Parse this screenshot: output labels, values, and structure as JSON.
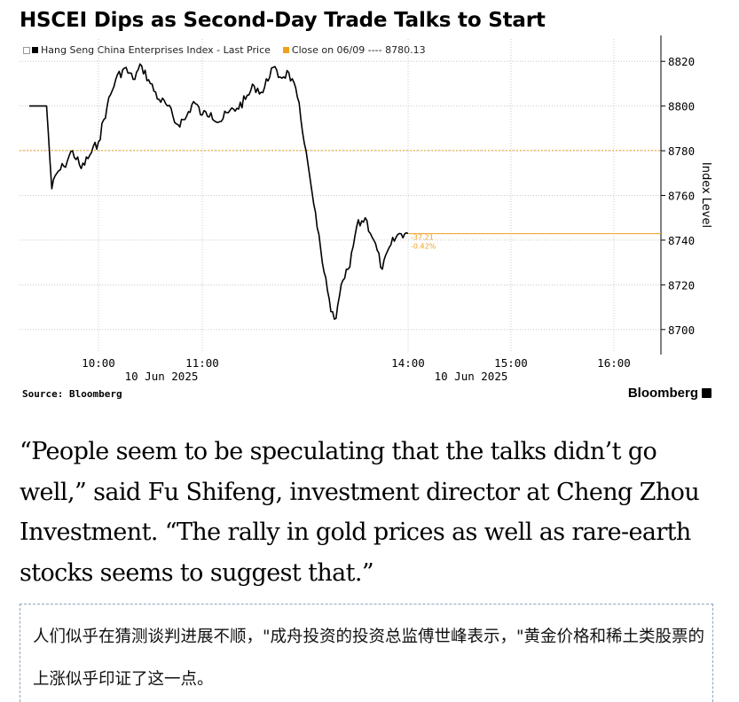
{
  "header": {
    "title": "HSCEI Dips as Second-Day Trade Talks to Start"
  },
  "legend": {
    "series_label": "Hang Seng China Enterprises Index - Last Price",
    "close_label": "Close on 06/09 ---- 8780.13",
    "series_color": "#000000",
    "close_color": "#f0a020"
  },
  "chart_data": {
    "type": "line",
    "title": "HSCEI Dips as Second-Day Trade Talks to Start",
    "xlabel": "",
    "ylabel": "Index Level",
    "ylim": [
      8690,
      8830
    ],
    "yticks": [
      8700,
      8720,
      8740,
      8760,
      8780,
      8800,
      8820
    ],
    "ytick_labels": [
      "8700",
      "8720",
      "8740",
      "8760",
      "8780",
      "8800",
      "8820"
    ],
    "xticks": [
      {
        "time": "10:00",
        "date": "10 Jun 2025",
        "hour": 10.0
      },
      {
        "time": "11:00",
        "date": "",
        "hour": 11.0
      },
      {
        "time": "14:00",
        "date": "10 Jun 2025",
        "hour": 14.0
      },
      {
        "time": "15:00",
        "date": "",
        "hour": 15.0
      },
      {
        "time": "16:00",
        "date": "",
        "hour": 16.0
      }
    ],
    "x_axis_note": "lunch break 12:00-13:00 compressed",
    "grid": true,
    "reference_line": {
      "label": "Close on 06/09",
      "value": 8780.13
    },
    "last_value": 8742.9,
    "change_labels": [
      "-37.21",
      "-0.42%"
    ],
    "series": [
      {
        "name": "Hang Seng China Enterprises Index - Last Price",
        "x": [
          "09:20",
          "09:30",
          "09:33",
          "09:36",
          "09:40",
          "09:45",
          "09:50",
          "09:55",
          "10:00",
          "10:05",
          "10:10",
          "10:15",
          "10:20",
          "10:25",
          "10:30",
          "10:35",
          "10:40",
          "10:45",
          "10:50",
          "10:55",
          "11:00",
          "11:05",
          "11:10",
          "11:15",
          "11:20",
          "11:25",
          "11:30",
          "11:35",
          "11:40",
          "11:45",
          "11:50",
          "11:55",
          "12:00",
          "13:05",
          "13:10",
          "13:15",
          "13:18",
          "13:22",
          "13:26",
          "13:30",
          "13:35",
          "13:40",
          "13:45",
          "13:50",
          "13:55",
          "14:00"
        ],
        "y": [
          8800,
          8800,
          8763,
          8770,
          8773,
          8780,
          8772,
          8778,
          8784,
          8800,
          8812,
          8817,
          8812,
          8818,
          8810,
          8803,
          8800,
          8792,
          8794,
          8802,
          8796,
          8797,
          8793,
          8797,
          8799,
          8803,
          8809,
          8806,
          8817,
          8813,
          8815,
          8804,
          8780,
          8756,
          8730,
          8708,
          8705,
          8722,
          8728,
          8746,
          8750,
          8740,
          8727,
          8738,
          8743,
          8742.9
        ]
      }
    ]
  },
  "footer": {
    "source": "Source: Bloomberg",
    "brand": "Bloomberg"
  },
  "article": {
    "quote": "“People seem to be speculating that the talks didn’t go well,” said Fu Shifeng, investment director at Cheng Zhou Investment. “The rally in gold prices as well as rare-earth stocks seems to suggest that.”",
    "translation": "人们似乎在猜测谈判进展不顺，\"成舟投资的投资总监傅世峰表示，\"黄金价格和稀土类股票的上涨似乎印证了这一点。"
  }
}
